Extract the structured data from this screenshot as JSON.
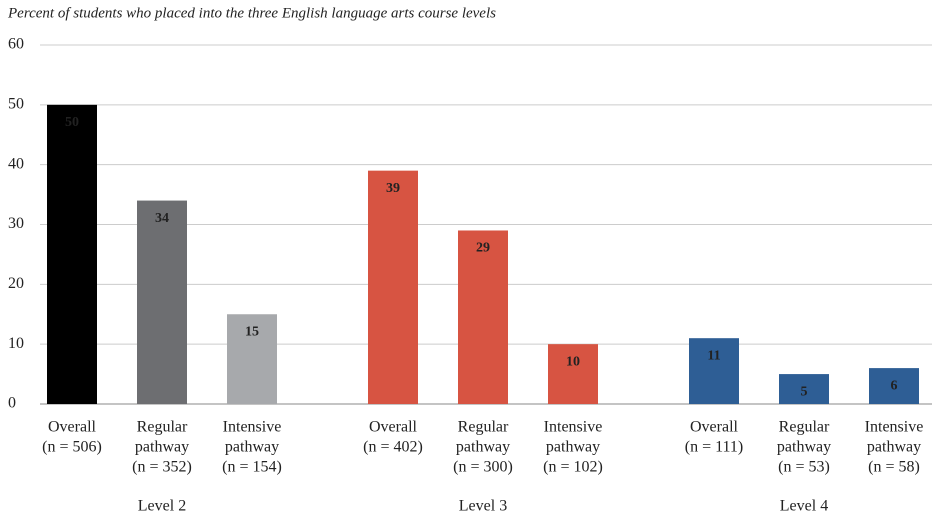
{
  "chart_data": {
    "type": "bar",
    "title": "Percent of students who placed into the three English language arts course levels",
    "ylim": [
      0,
      60
    ],
    "yticks": [
      0,
      10,
      20,
      30,
      40,
      50,
      60
    ],
    "grid": true,
    "groups": [
      {
        "name": "Level 2",
        "categories": [
          [
            "Overall",
            "(n = 506)"
          ],
          [
            "Regular",
            "pathway",
            "(n = 352)"
          ],
          [
            "Intensive",
            "pathway",
            "(n = 154)"
          ]
        ],
        "values": [
          50,
          34,
          15
        ],
        "colors": [
          "#000000",
          "#6d6e71",
          "#a7a9ac"
        ]
      },
      {
        "name": "Level 3",
        "categories": [
          [
            "Overall",
            "(n = 402)"
          ],
          [
            "Regular",
            "pathway",
            "(n = 300)"
          ],
          [
            "Intensive",
            "pathway",
            "(n = 102)"
          ]
        ],
        "values": [
          39,
          29,
          10
        ],
        "colors": [
          "#d75442",
          "#d75442",
          "#d75442"
        ]
      },
      {
        "name": "Level 4",
        "categories": [
          [
            "Overall",
            "(n = 111)"
          ],
          [
            "Regular",
            "pathway",
            "(n = 53)"
          ],
          [
            "Intensive",
            "pathway",
            "(n = 58)"
          ]
        ],
        "values": [
          11,
          5,
          6
        ],
        "colors": [
          "#2e5e95",
          "#2e5e95",
          "#2e5e95"
        ]
      }
    ]
  }
}
